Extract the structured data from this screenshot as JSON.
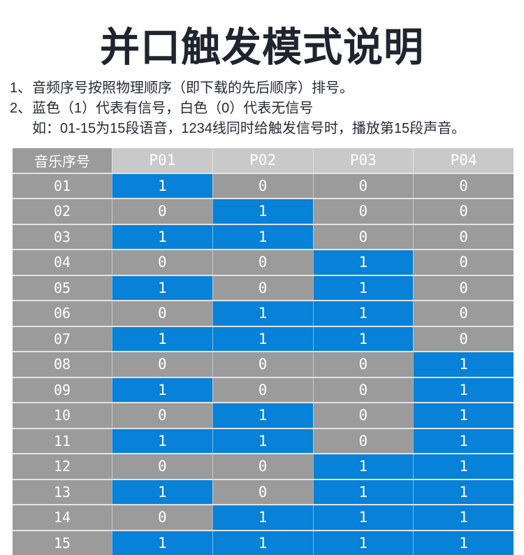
{
  "title": "并口触发模式说明",
  "notes": [
    {
      "marker": "1、",
      "lines": [
        "音频序号按照物理顺序（即下载的先后顺序）排号。"
      ]
    },
    {
      "marker": "2、",
      "lines": [
        "蓝色（1）代表有信号，白色（0）代表无信号",
        "如：01-15为15段语音，1234线同时给触发信号时，播放第15段声音。"
      ]
    }
  ],
  "table": {
    "header": [
      "音乐序号",
      "P01",
      "P02",
      "P03",
      "P04"
    ],
    "rows": [
      {
        "label": "01",
        "values": [
          1,
          0,
          0,
          0
        ]
      },
      {
        "label": "02",
        "values": [
          0,
          1,
          0,
          0
        ]
      },
      {
        "label": "03",
        "values": [
          1,
          1,
          0,
          0
        ]
      },
      {
        "label": "04",
        "values": [
          0,
          0,
          1,
          0
        ]
      },
      {
        "label": "05",
        "values": [
          1,
          0,
          1,
          0
        ]
      },
      {
        "label": "06",
        "values": [
          0,
          1,
          1,
          0
        ]
      },
      {
        "label": "07",
        "values": [
          1,
          1,
          1,
          0
        ]
      },
      {
        "label": "08",
        "values": [
          0,
          0,
          0,
          1
        ]
      },
      {
        "label": "09",
        "values": [
          1,
          0,
          0,
          1
        ]
      },
      {
        "label": "10",
        "values": [
          0,
          1,
          0,
          1
        ]
      },
      {
        "label": "11",
        "values": [
          1,
          1,
          0,
          1
        ]
      },
      {
        "label": "12",
        "values": [
          0,
          0,
          1,
          1
        ]
      },
      {
        "label": "13",
        "values": [
          1,
          0,
          1,
          1
        ]
      },
      {
        "label": "14",
        "values": [
          0,
          1,
          1,
          1
        ]
      },
      {
        "label": "15",
        "values": [
          1,
          1,
          1,
          1
        ]
      }
    ]
  },
  "colors": {
    "signal_on": "#0881d8",
    "signal_off": "#9b9b9b",
    "header_port_bg": "#c9c9c9",
    "row_gap": "#e3e3e3",
    "cell_text": "#ffffff",
    "title_text": "#20242e",
    "body_text": "#262a33"
  }
}
